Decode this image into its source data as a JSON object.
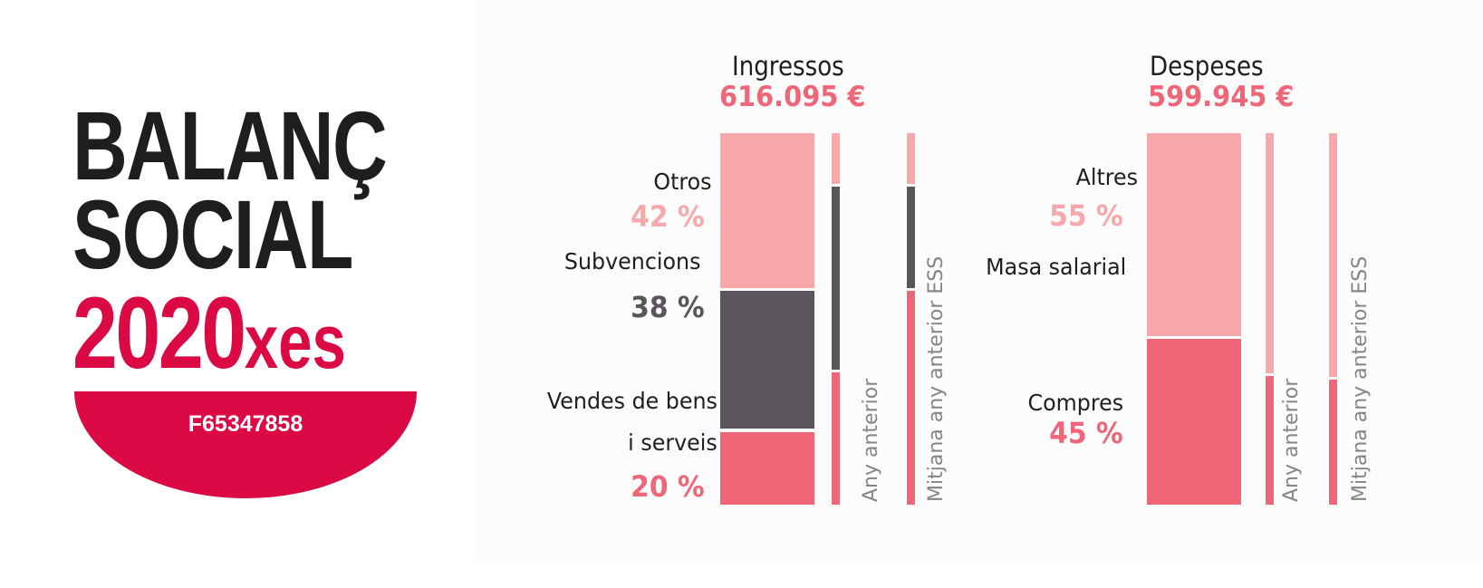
{
  "logo": {
    "line1": "BALANÇ",
    "line2": "SOCIAL",
    "year": "2020",
    "suffix": "xes",
    "id": "F65347858"
  },
  "colors": {
    "brand_red": "#db0a44",
    "dark": "#1f1d1e",
    "light_pink": "#f7a8ab",
    "gray": "#5a555b",
    "coral": "#ee6677",
    "label_gray": "#858585"
  },
  "chart_data": [
    {
      "type": "bar",
      "stacked": true,
      "title": "Ingressos",
      "total": "616.095 €",
      "segments": [
        {
          "name": "Otros",
          "label": "Otros",
          "percent": 42,
          "percent_label": "42 %",
          "color": "#f7a8ab"
        },
        {
          "name": "Subvencions",
          "label": "Subvencions",
          "percent": 38,
          "percent_label": "38 %",
          "color": "#5a555b"
        },
        {
          "name": "Vendes de bens i serveis",
          "label_lines": [
            "Vendes de bens",
            "i serveis"
          ],
          "percent": 20,
          "percent_label": "20 %",
          "color": "#ee6677"
        }
      ],
      "comparisons": [
        {
          "label": "Any anterior",
          "percents": [
            14,
            50,
            36
          ]
        },
        {
          "label": "Mitjana any anterior ESS",
          "percents": [
            14,
            28,
            58
          ]
        }
      ]
    },
    {
      "type": "bar",
      "stacked": true,
      "title": "Despeses",
      "total": "599.945 €",
      "segments": [
        {
          "name": "Altres",
          "label": "Altres",
          "percent": 55,
          "percent_label": "55 %",
          "color": "#f7a8ab"
        },
        {
          "name": "Masa salarial",
          "label": "Masa salarial",
          "percent": 0,
          "percent_label": "",
          "color": "#5a555b"
        },
        {
          "name": "Compres",
          "label": "Compres",
          "percent": 45,
          "percent_label": "45 %",
          "color": "#ee6677"
        }
      ],
      "comparisons": [
        {
          "label": "Any anterior",
          "percents": [
            65,
            0,
            35
          ]
        },
        {
          "label": "Mitjana any anterior ESS",
          "percents": [
            66,
            0,
            34
          ]
        }
      ]
    }
  ]
}
